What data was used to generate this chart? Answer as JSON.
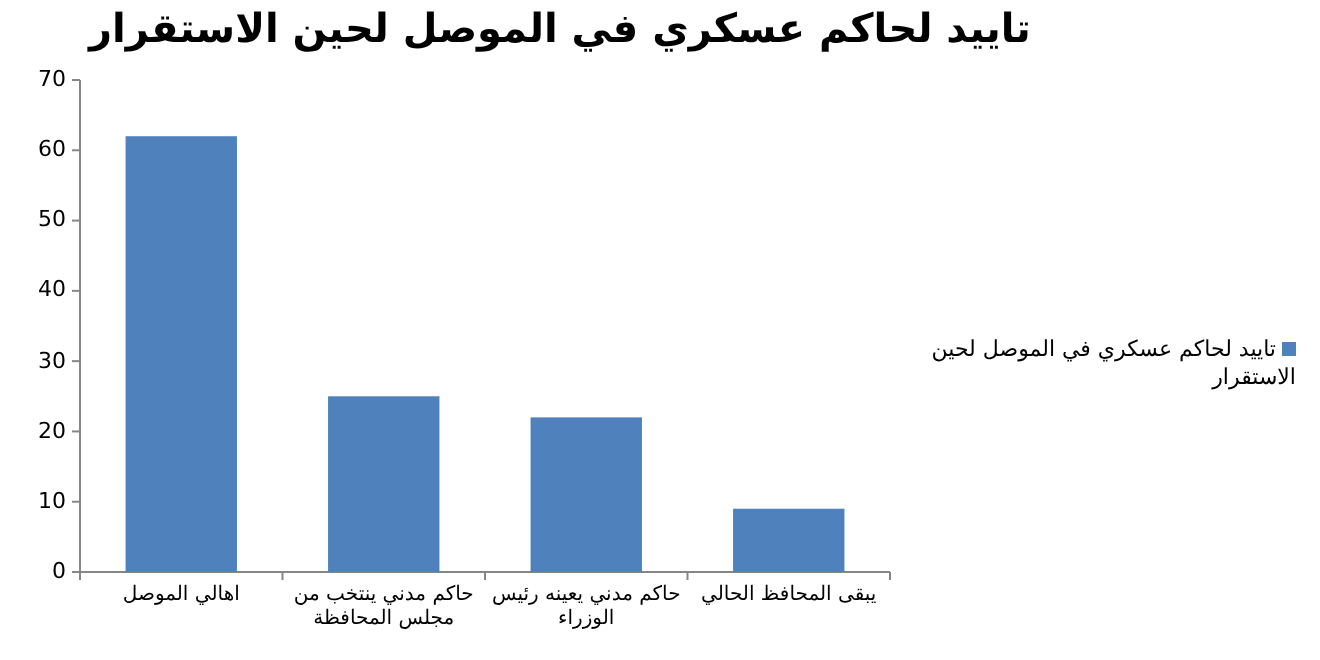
{
  "chart_data": {
    "type": "bar",
    "title": "تاييد لحاكم عسكري في الموصل  لحين الاستقرار",
    "categories": [
      "اهالي الموصل",
      "حاكم مدني  ينتخب من مجلس المحافظة",
      "حاكم مدني يعينه رئيس الوزراء",
      "يبقى المحافظ الحالي"
    ],
    "series": [
      {
        "name": "تاييد لحاكم عسكري في الموصل  لحين الاستقرار",
        "color": "#4f81bd",
        "values": [
          62,
          25,
          22,
          9
        ]
      }
    ],
    "ylim": [
      0,
      70
    ],
    "yticks": [
      0,
      10,
      20,
      30,
      40,
      50,
      60,
      70
    ],
    "grid": false,
    "legend": "right"
  }
}
